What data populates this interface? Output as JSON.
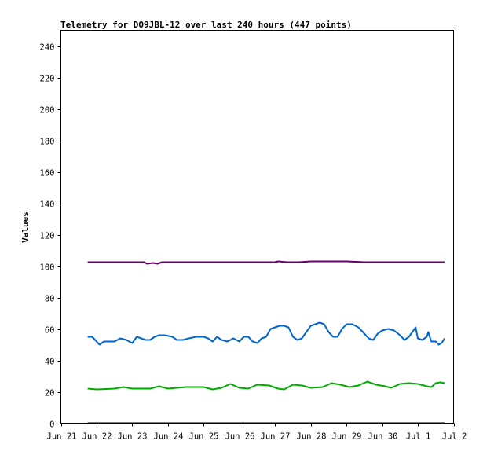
{
  "chart_data": {
    "type": "line",
    "title": "Telemetry for DO9JBL-12 over last 240 hours (447 points)",
    "xlabel": "",
    "ylabel": "Values",
    "ylim": [
      0,
      250
    ],
    "xlim": [
      "2024-06-21T00:00",
      "2024-07-02T00:00"
    ],
    "y_ticks": [
      0,
      20,
      40,
      60,
      80,
      100,
      120,
      140,
      160,
      180,
      200,
      220,
      240
    ],
    "x_ticks": [
      {
        "at": "2024-06-21T00:00",
        "label": "Jun 21"
      },
      {
        "at": "2024-06-22T00:00",
        "label": "Jun 22"
      },
      {
        "at": "2024-06-23T00:00",
        "label": "Jun 23"
      },
      {
        "at": "2024-06-24T00:00",
        "label": "Jun 24"
      },
      {
        "at": "2024-06-25T00:00",
        "label": "Jun 25"
      },
      {
        "at": "2024-06-26T00:00",
        "label": "Jun 26"
      },
      {
        "at": "2024-06-27T00:00",
        "label": "Jun 27"
      },
      {
        "at": "2024-06-28T00:00",
        "label": "Jun 28"
      },
      {
        "at": "2024-06-29T00:00",
        "label": "Jun 29"
      },
      {
        "at": "2024-06-30T00:00",
        "label": "Jun 30"
      },
      {
        "at": "2024-07-01T00:00",
        "label": "Jul 1"
      },
      {
        "at": "2024-07-02T00:00",
        "label": "Jul 2"
      }
    ],
    "grid": false,
    "legend": "none",
    "series": [
      {
        "color": "#660066",
        "points": [
          [
            "2024-06-21T18:00",
            102.5
          ],
          [
            "2024-06-22T12:00",
            102.5
          ],
          [
            "2024-06-23T00:00",
            102.5
          ],
          [
            "2024-06-23T08:00",
            102.5
          ],
          [
            "2024-06-23T10:00",
            101.5
          ],
          [
            "2024-06-23T14:00",
            102.0
          ],
          [
            "2024-06-23T17:00",
            101.5
          ],
          [
            "2024-06-23T20:00",
            102.5
          ],
          [
            "2024-06-24T12:00",
            102.5
          ],
          [
            "2024-06-25T12:00",
            102.5
          ],
          [
            "2024-06-26T12:00",
            102.5
          ],
          [
            "2024-06-27T00:00",
            102.5
          ],
          [
            "2024-06-27T02:00",
            103.0
          ],
          [
            "2024-06-27T08:00",
            102.5
          ],
          [
            "2024-06-27T16:00",
            102.5
          ],
          [
            "2024-06-28T00:00",
            103.0
          ],
          [
            "2024-06-28T12:00",
            103.0
          ],
          [
            "2024-06-29T00:00",
            103.0
          ],
          [
            "2024-06-29T12:00",
            102.5
          ],
          [
            "2024-06-30T12:00",
            102.5
          ],
          [
            "2024-07-01T12:00",
            102.5
          ],
          [
            "2024-07-01T18:00",
            102.5
          ]
        ]
      },
      {
        "color": "#0066cc",
        "points": [
          [
            "2024-06-21T18:00",
            55
          ],
          [
            "2024-06-21T21:00",
            55
          ],
          [
            "2024-06-22T00:00",
            52
          ],
          [
            "2024-06-22T02:00",
            50
          ],
          [
            "2024-06-22T05:00",
            52
          ],
          [
            "2024-06-22T08:00",
            52
          ],
          [
            "2024-06-22T12:00",
            52
          ],
          [
            "2024-06-22T16:00",
            54
          ],
          [
            "2024-06-22T20:00",
            53
          ],
          [
            "2024-06-23T00:00",
            51
          ],
          [
            "2024-06-23T03:00",
            55
          ],
          [
            "2024-06-23T06:00",
            54
          ],
          [
            "2024-06-23T09:00",
            53
          ],
          [
            "2024-06-23T12:00",
            53
          ],
          [
            "2024-06-23T15:00",
            55
          ],
          [
            "2024-06-23T18:00",
            56
          ],
          [
            "2024-06-23T22:00",
            56
          ],
          [
            "2024-06-24T03:00",
            55
          ],
          [
            "2024-06-24T06:00",
            53
          ],
          [
            "2024-06-24T10:00",
            53
          ],
          [
            "2024-06-24T14:00",
            54
          ],
          [
            "2024-06-24T19:00",
            55
          ],
          [
            "2024-06-25T00:00",
            55
          ],
          [
            "2024-06-25T03:00",
            54
          ],
          [
            "2024-06-25T06:00",
            52
          ],
          [
            "2024-06-25T09:00",
            55
          ],
          [
            "2024-06-25T12:00",
            53
          ],
          [
            "2024-06-25T16:00",
            52
          ],
          [
            "2024-06-25T20:00",
            54
          ],
          [
            "2024-06-26T00:00",
            52
          ],
          [
            "2024-06-26T03:00",
            55
          ],
          [
            "2024-06-26T06:00",
            55
          ],
          [
            "2024-06-26T09:00",
            52
          ],
          [
            "2024-06-26T12:00",
            51
          ],
          [
            "2024-06-26T15:00",
            54
          ],
          [
            "2024-06-26T18:00",
            55
          ],
          [
            "2024-06-26T21:00",
            60
          ],
          [
            "2024-06-27T00:00",
            61
          ],
          [
            "2024-06-27T03:00",
            62
          ],
          [
            "2024-06-27T06:00",
            62
          ],
          [
            "2024-06-27T09:00",
            61
          ],
          [
            "2024-06-27T12:00",
            55
          ],
          [
            "2024-06-27T15:00",
            53
          ],
          [
            "2024-06-27T18:00",
            54
          ],
          [
            "2024-06-27T21:00",
            58
          ],
          [
            "2024-06-28T00:00",
            62
          ],
          [
            "2024-06-28T03:00",
            63
          ],
          [
            "2024-06-28T06:00",
            64
          ],
          [
            "2024-06-28T09:00",
            63
          ],
          [
            "2024-06-28T12:00",
            58
          ],
          [
            "2024-06-28T15:00",
            55
          ],
          [
            "2024-06-28T18:00",
            55
          ],
          [
            "2024-06-28T21:00",
            60
          ],
          [
            "2024-06-29T00:00",
            63
          ],
          [
            "2024-06-29T04:00",
            63
          ],
          [
            "2024-06-29T08:00",
            61
          ],
          [
            "2024-06-29T12:00",
            57
          ],
          [
            "2024-06-29T15:00",
            54
          ],
          [
            "2024-06-29T18:00",
            53
          ],
          [
            "2024-06-29T21:00",
            57
          ],
          [
            "2024-06-30T00:00",
            59
          ],
          [
            "2024-06-30T04:00",
            60
          ],
          [
            "2024-06-30T08:00",
            59
          ],
          [
            "2024-06-30T12:00",
            56
          ],
          [
            "2024-06-30T15:00",
            53
          ],
          [
            "2024-06-30T18:00",
            55
          ],
          [
            "2024-06-30T21:00",
            59
          ],
          [
            "2024-06-30T22:30",
            61
          ],
          [
            "2024-07-01T00:00",
            54
          ],
          [
            "2024-07-01T03:00",
            53
          ],
          [
            "2024-07-01T06:00",
            55
          ],
          [
            "2024-07-01T07:00",
            58
          ],
          [
            "2024-07-01T09:00",
            52
          ],
          [
            "2024-07-01T12:00",
            52
          ],
          [
            "2024-07-01T14:00",
            50
          ],
          [
            "2024-07-01T16:00",
            51
          ],
          [
            "2024-07-01T18:00",
            54
          ]
        ]
      },
      {
        "color": "#00aa00",
        "points": [
          [
            "2024-06-21T18:00",
            22
          ],
          [
            "2024-06-22T00:00",
            21.5
          ],
          [
            "2024-06-22T12:00",
            22
          ],
          [
            "2024-06-22T18:00",
            23
          ],
          [
            "2024-06-23T00:00",
            22
          ],
          [
            "2024-06-23T12:00",
            22
          ],
          [
            "2024-06-23T18:00",
            23.5
          ],
          [
            "2024-06-24T00:00",
            22
          ],
          [
            "2024-06-24T12:00",
            23
          ],
          [
            "2024-06-25T00:00",
            23
          ],
          [
            "2024-06-25T06:00",
            21.5
          ],
          [
            "2024-06-25T12:00",
            22.5
          ],
          [
            "2024-06-25T18:00",
            25
          ],
          [
            "2024-06-26T00:00",
            22.5
          ],
          [
            "2024-06-26T06:00",
            22
          ],
          [
            "2024-06-26T12:00",
            24.5
          ],
          [
            "2024-06-26T20:00",
            24
          ],
          [
            "2024-06-27T02:00",
            22
          ],
          [
            "2024-06-27T06:00",
            21.5
          ],
          [
            "2024-06-27T12:00",
            24.5
          ],
          [
            "2024-06-27T18:00",
            24
          ],
          [
            "2024-06-28T00:00",
            22.5
          ],
          [
            "2024-06-28T08:00",
            23
          ],
          [
            "2024-06-28T14:00",
            25.5
          ],
          [
            "2024-06-28T20:00",
            24.5
          ],
          [
            "2024-06-29T02:00",
            23
          ],
          [
            "2024-06-29T08:00",
            24
          ],
          [
            "2024-06-29T14:00",
            26.5
          ],
          [
            "2024-06-29T20:00",
            24.5
          ],
          [
            "2024-06-30T02:00",
            23.5
          ],
          [
            "2024-06-30T06:00",
            22.5
          ],
          [
            "2024-06-30T12:00",
            25
          ],
          [
            "2024-06-30T18:00",
            25.5
          ],
          [
            "2024-07-01T00:00",
            25
          ],
          [
            "2024-07-01T06:00",
            23.5
          ],
          [
            "2024-07-01T09:00",
            23
          ],
          [
            "2024-07-01T12:00",
            25.5
          ],
          [
            "2024-07-01T15:00",
            26
          ],
          [
            "2024-07-01T18:00",
            25.5
          ]
        ]
      },
      {
        "color": "#000000",
        "points": [
          [
            "2024-06-21T18:00",
            0
          ],
          [
            "2024-07-01T18:00",
            0
          ]
        ]
      }
    ]
  }
}
